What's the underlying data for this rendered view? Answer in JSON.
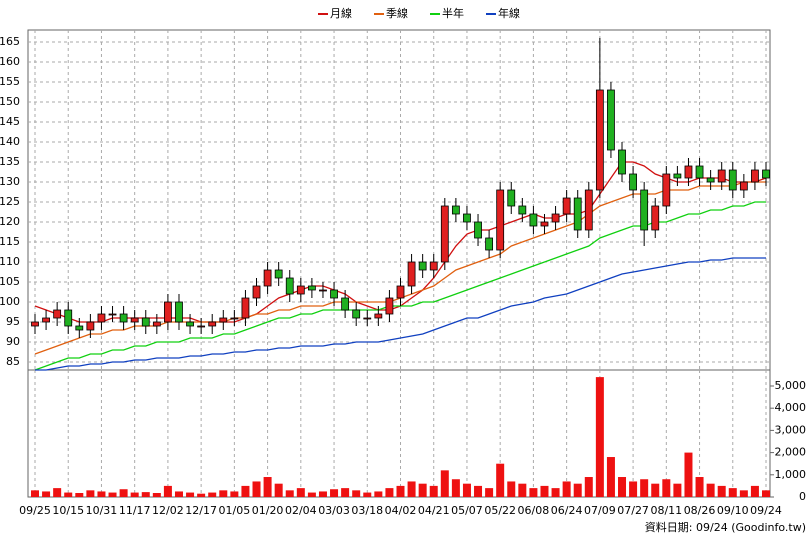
{
  "chart_data": {
    "type": "candlestick",
    "categories": [
      "09/25",
      null,
      null,
      "10/15",
      null,
      null,
      "10/31",
      null,
      null,
      "11/17",
      null,
      null,
      "12/02",
      null,
      null,
      "12/17",
      null,
      null,
      "01/05",
      null,
      null,
      "01/20",
      null,
      null,
      "02/04",
      null,
      null,
      "03/03",
      null,
      null,
      "03/18",
      null,
      null,
      "04/02",
      null,
      null,
      "04/21",
      null,
      null,
      "05/07",
      null,
      null,
      "05/22",
      null,
      null,
      "06/08",
      null,
      null,
      "06/24",
      null,
      null,
      "07/09",
      null,
      null,
      "07/27",
      null,
      null,
      "08/11",
      null,
      null,
      "08/26",
      null,
      null,
      "09/10",
      null,
      null,
      "09/24"
    ],
    "open": [
      94,
      95,
      96,
      98,
      94,
      93,
      95,
      97,
      97,
      95,
      96,
      94,
      95,
      100,
      95,
      94,
      94,
      95,
      96,
      96,
      101,
      104,
      108,
      106,
      102,
      104,
      103,
      103,
      101,
      98,
      96,
      96,
      97,
      101,
      104,
      110,
      108,
      110,
      124,
      122,
      120,
      116,
      113,
      128,
      124,
      122,
      119,
      120,
      122,
      126,
      118,
      128,
      153,
      138,
      132,
      128,
      118,
      124,
      132,
      131,
      134,
      131,
      130,
      133,
      128,
      130,
      133
    ],
    "high": [
      97,
      98,
      100,
      100,
      96,
      97,
      99,
      99,
      99,
      98,
      98,
      97,
      102,
      102,
      97,
      96,
      97,
      98,
      98,
      103,
      106,
      110,
      110,
      108,
      106,
      106,
      105,
      105,
      103,
      100,
      98,
      99,
      103,
      106,
      112,
      112,
      112,
      126,
      126,
      124,
      122,
      118,
      130,
      130,
      126,
      124,
      122,
      124,
      128,
      128,
      130,
      166,
      155,
      140,
      134,
      130,
      126,
      134,
      134,
      136,
      136,
      133,
      135,
      135,
      132,
      135,
      135
    ],
    "low": [
      92,
      93,
      94,
      92,
      91,
      91,
      93,
      95,
      93,
      93,
      92,
      92,
      93,
      93,
      92,
      92,
      92,
      93,
      94,
      94,
      99,
      102,
      104,
      100,
      100,
      101,
      101,
      99,
      96,
      94,
      94,
      94,
      95,
      99,
      102,
      106,
      106,
      108,
      120,
      118,
      114,
      111,
      111,
      122,
      120,
      117,
      117,
      118,
      120,
      116,
      116,
      126,
      136,
      130,
      126,
      114,
      116,
      122,
      129,
      129,
      129,
      128,
      128,
      126,
      126,
      128,
      129
    ],
    "close": [
      95,
      96,
      98,
      94,
      93,
      95,
      97,
      97,
      95,
      96,
      94,
      95,
      100,
      95,
      94,
      94,
      95,
      96,
      96,
      101,
      104,
      108,
      106,
      102,
      104,
      103,
      103,
      101,
      98,
      96,
      96,
      97,
      101,
      104,
      110,
      108,
      110,
      124,
      122,
      120,
      116,
      113,
      128,
      124,
      122,
      119,
      120,
      122,
      126,
      118,
      128,
      153,
      138,
      132,
      128,
      118,
      124,
      132,
      131,
      134,
      131,
      130,
      133,
      128,
      130,
      133,
      131
    ],
    "up_color": "#e02020",
    "down_color": "#20b020",
    "series": [
      {
        "name": "月線",
        "color": "#d01010",
        "values": [
          99,
          98,
          97,
          96,
          95,
          95,
          95,
          96,
          96,
          96,
          96,
          96,
          96,
          96,
          96,
          95,
          95,
          95,
          95,
          96,
          97,
          99,
          101,
          102,
          103,
          104,
          104,
          103,
          102,
          100,
          99,
          98,
          98,
          99,
          101,
          103,
          106,
          110,
          114,
          117,
          118,
          118,
          119,
          120,
          121,
          122,
          121,
          121,
          122,
          122,
          123,
          127,
          131,
          135,
          135,
          134,
          132,
          131,
          130,
          130,
          131,
          131,
          131,
          130,
          130,
          130,
          131
        ]
      },
      {
        "name": "季線",
        "color": "#e06010",
        "values": [
          87,
          88,
          89,
          90,
          91,
          92,
          92,
          93,
          93,
          94,
          94,
          94,
          95,
          95,
          95,
          95,
          95,
          95,
          96,
          96,
          97,
          97,
          98,
          98,
          99,
          99,
          99,
          100,
          100,
          100,
          100,
          100,
          100,
          101,
          102,
          103,
          104,
          106,
          108,
          109,
          110,
          111,
          112,
          114,
          115,
          116,
          117,
          118,
          119,
          120,
          122,
          124,
          125,
          126,
          127,
          127,
          127,
          128,
          128,
          128,
          129,
          129,
          129,
          129,
          130,
          130,
          130
        ]
      },
      {
        "name": "半年",
        "color": "#10d010",
        "values": [
          83,
          84,
          85,
          86,
          86,
          87,
          87,
          88,
          88,
          89,
          89,
          90,
          90,
          90,
          91,
          91,
          91,
          92,
          92,
          93,
          94,
          95,
          96,
          96,
          97,
          97,
          98,
          98,
          98,
          98,
          98,
          98,
          99,
          99,
          99,
          100,
          100,
          101,
          102,
          103,
          104,
          105,
          106,
          107,
          108,
          109,
          110,
          111,
          112,
          113,
          114,
          116,
          117,
          118,
          119,
          119,
          120,
          120,
          121,
          122,
          122,
          123,
          123,
          124,
          124,
          125,
          125
        ]
      },
      {
        "name": "年線",
        "color": "#1040c0",
        "values": [
          83,
          83,
          83.5,
          84,
          84,
          84.5,
          84.5,
          85,
          85,
          85.5,
          85.5,
          86,
          86,
          86,
          86.5,
          86.5,
          87,
          87,
          87.5,
          87.5,
          88,
          88,
          88.5,
          88.5,
          89,
          89,
          89,
          89.5,
          89.5,
          90,
          90,
          90,
          90.5,
          91,
          91.5,
          92,
          93,
          94,
          95,
          96,
          96,
          97,
          98,
          99,
          99.5,
          100,
          101,
          101.5,
          102,
          103,
          104,
          105,
          106,
          107,
          107.5,
          108,
          108.5,
          109,
          109.5,
          110,
          110,
          110.5,
          110.5,
          111,
          111,
          111,
          111
        ]
      }
    ],
    "ylim": [
      83,
      168
    ],
    "yticks": [
      85,
      90,
      95,
      100,
      105,
      110,
      115,
      120,
      125,
      130,
      135,
      140,
      145,
      150,
      155,
      160,
      165
    ],
    "grid": true,
    "volume": [
      300,
      250,
      400,
      200,
      180,
      300,
      250,
      200,
      350,
      200,
      220,
      180,
      500,
      250,
      200,
      150,
      200,
      300,
      250,
      500,
      700,
      900,
      600,
      300,
      400,
      200,
      250,
      350,
      400,
      300,
      200,
      250,
      400,
      500,
      700,
      600,
      500,
      1200,
      800,
      600,
      500,
      400,
      1500,
      700,
      600,
      400,
      500,
      400,
      700,
      600,
      900,
      5400,
      1800,
      900,
      700,
      800,
      600,
      800,
      600,
      2000,
      900,
      600,
      500,
      400,
      300,
      500,
      300
    ],
    "volume_color": "#ee1111",
    "y2lim": [
      0,
      5720
    ],
    "y2ticks": [
      0,
      {
        "value": 1000,
        "label": "1,000"
      },
      {
        "value": 2000,
        "label": "2,000"
      },
      {
        "value": 3000,
        "label": "3,000"
      },
      {
        "value": 4000,
        "label": "4,000"
      },
      {
        "value": 5000,
        "label": "5,000"
      }
    ],
    "source": "資料日期: 09/24 (Goodinfo.tw)"
  }
}
